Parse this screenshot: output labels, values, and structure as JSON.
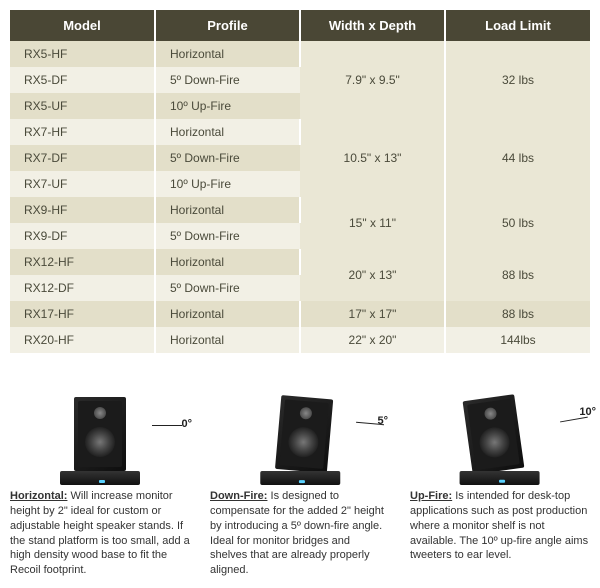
{
  "table": {
    "headers": [
      "Model",
      "Profile",
      "Width x Depth",
      "Load Limit"
    ],
    "groups": [
      {
        "dim": "7.9\" x 9.5\"",
        "load": "32 lbs",
        "rows": [
          {
            "model": "RX5-HF",
            "profile": "Horizontal"
          },
          {
            "model": "RX5-DF",
            "profile": "5º Down-Fire"
          },
          {
            "model": "RX5-UF",
            "profile": "10º Up-Fire"
          }
        ]
      },
      {
        "dim": "10.5\" x 13\"",
        "load": "44 lbs",
        "rows": [
          {
            "model": "RX7-HF",
            "profile": "Horizontal"
          },
          {
            "model": "RX7-DF",
            "profile": "5º Down-Fire"
          },
          {
            "model": "RX7-UF",
            "profile": "10º Up-Fire"
          }
        ]
      },
      {
        "dim": "15\" x 11\"",
        "load": "50 lbs",
        "rows": [
          {
            "model": "RX9-HF",
            "profile": "Horizontal"
          },
          {
            "model": "RX9-DF",
            "profile": "5º Down-Fire"
          }
        ]
      },
      {
        "dim": "20\" x 13\"",
        "load": "88 lbs",
        "rows": [
          {
            "model": "RX12-HF",
            "profile": "Horizontal"
          },
          {
            "model": "RX12-DF",
            "profile": "5º Down-Fire"
          }
        ]
      },
      {
        "dim": "17\" x 17\"",
        "load": "88 lbs",
        "rows": [
          {
            "model": "RX17-HF",
            "profile": "Horizontal"
          }
        ]
      },
      {
        "dim": "22\" x 20\"",
        "load": "144lbs",
        "rows": [
          {
            "model": "RX20-HF",
            "profile": "Horizontal"
          }
        ]
      }
    ]
  },
  "descriptions": [
    {
      "title": "Horizontal:",
      "angle": "0°",
      "text": " Will increase monitor height by 2\" ideal for custom or adjustable height speaker stands. If the stand platform is too small, add a high density wood base to fit the Recoil footprint."
    },
    {
      "title": "Down-Fire:",
      "angle": "5°",
      "text": " Is designed to compensate for the added 2\" height by introducing a 5º down-fire angle. Ideal for monitor bridges and shelves that are already properly aligned."
    },
    {
      "title": "Up-Fire:",
      "angle": "10°",
      "text": " Is intended for desk-top applications such as post production where a monitor shelf is not available. The 10º up-fire angle aims tweeters to ear level."
    }
  ]
}
